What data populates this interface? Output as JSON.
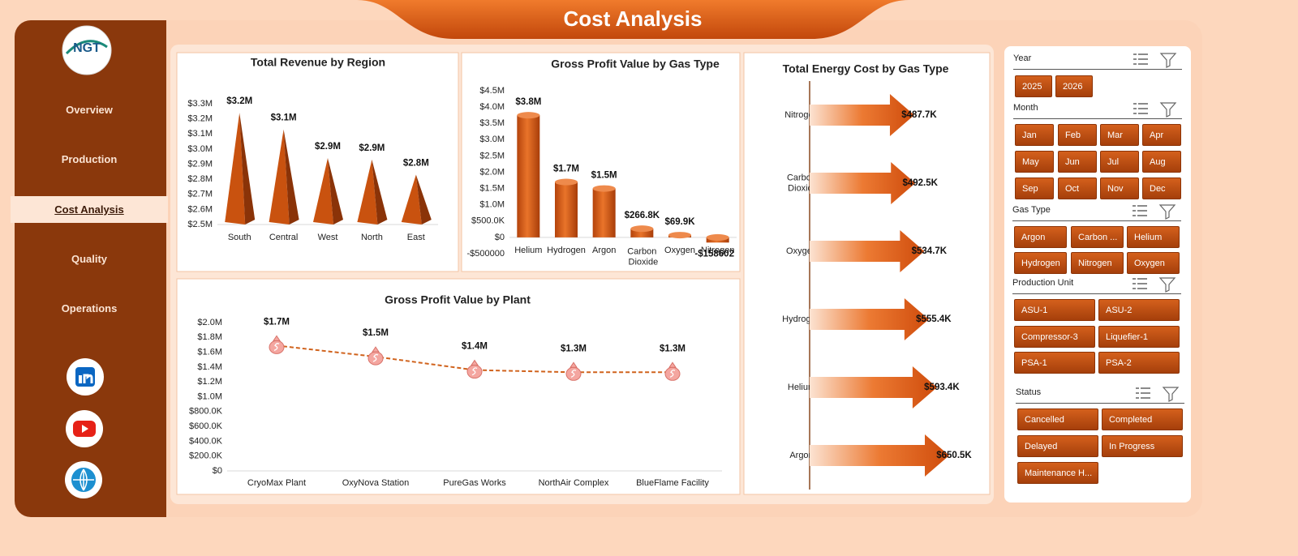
{
  "header": {
    "title": "Cost Analysis"
  },
  "logo": {
    "text": "NGT"
  },
  "nav": {
    "items": [
      "Overview",
      "Production",
      "Cost Analysis",
      "Quality",
      "Operations"
    ],
    "active": 2
  },
  "slicers": [
    {
      "title": "Year",
      "items": [
        2025,
        2026
      ]
    },
    {
      "title": "Month",
      "items": [
        "Jan",
        "Feb",
        "Mar",
        "Apr",
        "May",
        "Jun",
        "Jul",
        "Aug",
        "Sep",
        "Oct",
        "Nov",
        "Dec"
      ]
    },
    {
      "title": "Gas Type",
      "items": [
        "Argon",
        "Carbon ...",
        "Helium",
        "Hydrogen",
        "Nitrogen",
        "Oxygen"
      ]
    },
    {
      "title": "Production Unit",
      "items": [
        "ASU-1",
        "ASU-2",
        "Compressor-3",
        "Liquefier-1",
        "PSA-1",
        "PSA-2"
      ]
    },
    {
      "title": "Status",
      "items": [
        "Cancelled",
        "Completed",
        "Delayed",
        "In Progress",
        "Maintenance H..."
      ]
    }
  ],
  "chart_data": [
    {
      "type": "bar",
      "shape": "pyramid",
      "title": "Total Revenue by Region",
      "color": "#c9520f",
      "grid": false,
      "categories": [
        "South",
        "Central",
        "West",
        "North",
        "East"
      ],
      "values": [
        3240000,
        3130000,
        2940000,
        2930000,
        2830000
      ],
      "value_labels": [
        "$3.2M",
        "$3.1M",
        "$2.9M",
        "$2.9M",
        "$2.8M"
      ],
      "ylim": [
        2500000,
        3300000
      ],
      "yticks": [
        {
          "value": 2500000,
          "label": "$2.5M"
        },
        {
          "value": 2600000,
          "label": "$2.6M"
        },
        {
          "value": 2700000,
          "label": "$2.7M"
        },
        {
          "value": 2800000,
          "label": "$2.8M"
        },
        {
          "value": 2900000,
          "label": "$2.9M"
        },
        {
          "value": 3000000,
          "label": "$3.0M"
        },
        {
          "value": 3100000,
          "label": "$3.1M"
        },
        {
          "value": 3200000,
          "label": "$3.2M"
        },
        {
          "value": 3300000,
          "label": "$3.3M"
        }
      ]
    },
    {
      "type": "bar",
      "shape": "cylinder",
      "title": "Gross Profit Value by Gas Type",
      "color": "#d35a14",
      "grid": false,
      "categories": [
        "Helium",
        "Hydrogen",
        "Argon",
        "Carbon Dioxide",
        "Oxygen",
        "Nitrogen"
      ],
      "values": [
        3750000,
        1700000,
        1500000,
        266800,
        69900,
        -158602
      ],
      "value_labels": [
        "$3.8M",
        "$1.7M",
        "$1.5M",
        "$266.8K",
        "$69.9K",
        "-$158602"
      ],
      "ylim": [
        -500000,
        4500000
      ],
      "yticks": [
        {
          "value": -500000,
          "label": "-$500000"
        },
        {
          "value": 0,
          "label": "$0"
        },
        {
          "value": 500000,
          "label": "$500.0K"
        },
        {
          "value": 1000000,
          "label": "$1.0M"
        },
        {
          "value": 1500000,
          "label": "$1.5M"
        },
        {
          "value": 2000000,
          "label": "$2.0M"
        },
        {
          "value": 2500000,
          "label": "$2.5M"
        },
        {
          "value": 3000000,
          "label": "$3.0M"
        },
        {
          "value": 3500000,
          "label": "$3.5M"
        },
        {
          "value": 4000000,
          "label": "$4.0M"
        },
        {
          "value": 4500000,
          "label": "$4.5M"
        }
      ]
    },
    {
      "type": "bar",
      "shape": "arrow",
      "orientation": "horizontal",
      "title": "Total Energy Cost by Gas Type",
      "color": "#d0500f",
      "categories": [
        "Nitrogen",
        "Carbon Dioxide",
        "Oxygen",
        "Hydrogen",
        "Helium",
        "Argon"
      ],
      "values": [
        487.7,
        492.5,
        534.7,
        555.4,
        593.4,
        650.5
      ],
      "value_labels": [
        "$487.7K",
        "$492.5K",
        "$534.7K",
        "$555.4K",
        "$593.4K",
        "$650.5K"
      ]
    },
    {
      "type": "line",
      "title": "Gross Profit Value by Plant",
      "color": "#d0621c",
      "grid": false,
      "categories": [
        "CryoMax Plant",
        "OxyNova Station",
        "PureGas Works",
        "NorthAir Complex",
        "BlueFlame Facility"
      ],
      "values": [
        1690000,
        1540000,
        1360000,
        1330000,
        1330000
      ],
      "value_labels": [
        "$1.7M",
        "$1.5M",
        "$1.4M",
        "$1.3M",
        "$1.3M"
      ],
      "ylim": [
        0,
        2000000
      ],
      "yticks": [
        {
          "value": 0,
          "label": "$0"
        },
        {
          "value": 200000,
          "label": "$200.0K"
        },
        {
          "value": 400000,
          "label": "$400.0K"
        },
        {
          "value": 600000,
          "label": "$600.0K"
        },
        {
          "value": 800000,
          "label": "$800.0K"
        },
        {
          "value": 1000000,
          "label": "$1.0M"
        },
        {
          "value": 1200000,
          "label": "$1.2M"
        },
        {
          "value": 1400000,
          "label": "$1.4M"
        },
        {
          "value": 1600000,
          "label": "$1.6M"
        },
        {
          "value": 1800000,
          "label": "$1.8M"
        },
        {
          "value": 2000000,
          "label": "$2.0M"
        }
      ]
    }
  ]
}
